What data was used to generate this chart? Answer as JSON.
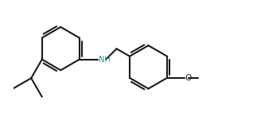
{
  "background_color": "#ffffff",
  "line_color": "#1a1a1a",
  "nh_color": "#2a9090",
  "line_width": 1.5,
  "fig_width": 3.18,
  "fig_height": 1.52,
  "dpi": 100,
  "xlim": [
    0.0,
    10.5
  ],
  "ylim": [
    -0.5,
    5.0
  ]
}
